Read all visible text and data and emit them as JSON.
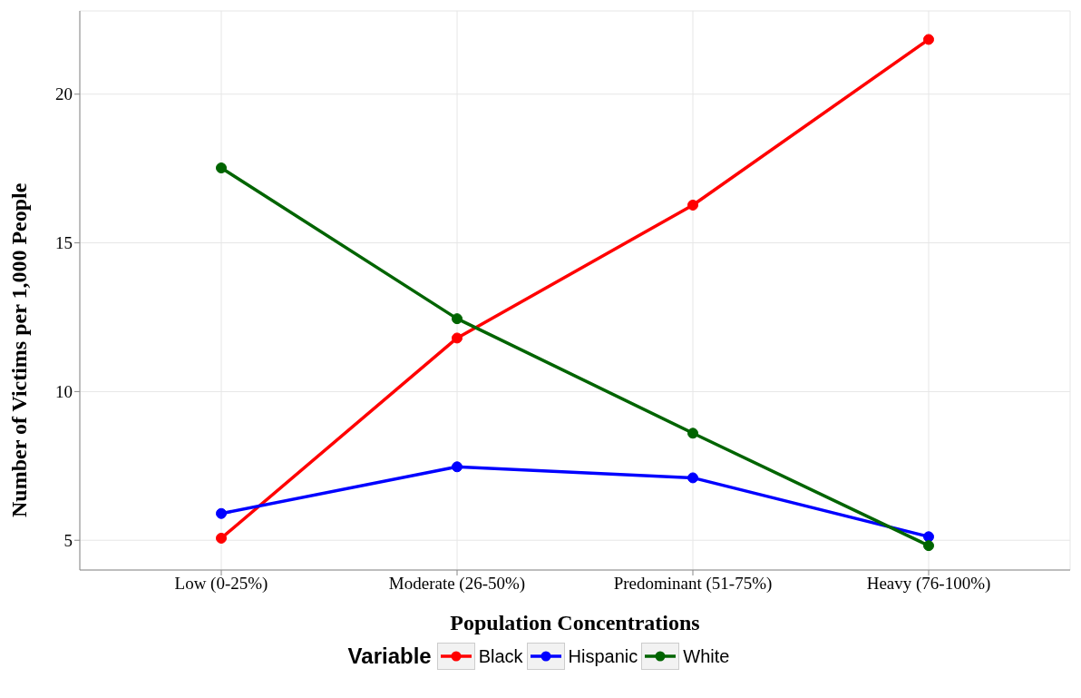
{
  "chart_data": {
    "type": "line",
    "xlabel": "Population Concentrations",
    "ylabel": "Number of Victims per 1,000 People",
    "legend_title": "Variable",
    "categories": [
      "Low (0-25%)",
      "Moderate (26-50%)",
      "Predominant (51-75%)",
      "Heavy (76-100%)"
    ],
    "series": [
      {
        "name": "Black",
        "color": "#ff0000",
        "values": [
          5.07,
          11.8,
          16.27,
          21.84
        ]
      },
      {
        "name": "Hispanic",
        "color": "#0000ff",
        "values": [
          5.9,
          7.47,
          7.1,
          5.12
        ]
      },
      {
        "name": "White",
        "color": "#006400",
        "values": [
          17.52,
          12.45,
          8.6,
          4.82
        ]
      }
    ],
    "ylim": [
      4.0,
      22.8
    ],
    "yticks": [
      5,
      10,
      15,
      20
    ],
    "grid": true,
    "legend": "bottom",
    "marker": "circle",
    "line_style": "solid"
  }
}
